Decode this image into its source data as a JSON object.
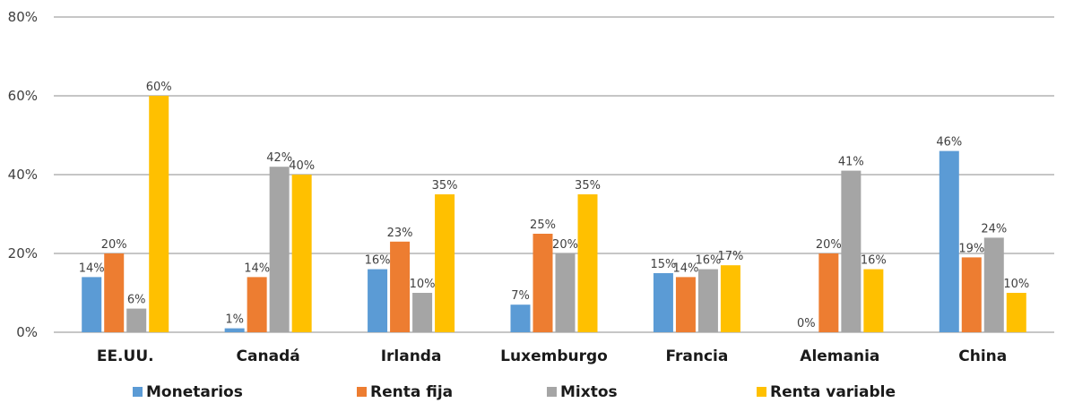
{
  "chart_data": {
    "type": "bar",
    "title": "",
    "xlabel": "",
    "ylabel": "",
    "ylim": [
      0,
      80
    ],
    "yticks": [
      0,
      20,
      40,
      60,
      80
    ],
    "ytick_labels": [
      "0%",
      "20%",
      "40%",
      "60%",
      "80%"
    ],
    "grid": true,
    "legend_position": "bottom",
    "categories": [
      "EE.UU.",
      "Canadá",
      "Irlanda",
      "Luxemburgo",
      "Francia",
      "Alemania",
      "China"
    ],
    "series": [
      {
        "name": "Monetarios",
        "color": "#5B9BD5",
        "values": [
          14,
          1,
          16,
          7,
          15,
          0,
          46
        ],
        "labels": [
          "14%",
          "1%",
          "16%",
          "7%",
          "15%",
          "0%",
          "46%"
        ]
      },
      {
        "name": "Renta fija",
        "color": "#ED7D31",
        "values": [
          20,
          14,
          23,
          25,
          14,
          20,
          19
        ],
        "labels": [
          "20%",
          "14%",
          "23%",
          "25%",
          "14%",
          "20%",
          "19%"
        ]
      },
      {
        "name": "Mixtos",
        "color": "#A5A5A5",
        "values": [
          6,
          42,
          10,
          20,
          16,
          41,
          24
        ],
        "labels": [
          "6%",
          "42%",
          "10%",
          "20%",
          "16%",
          "41%",
          "24%"
        ]
      },
      {
        "name": "Renta variable",
        "color": "#FFC000",
        "values": [
          60,
          40,
          35,
          35,
          17,
          16,
          10
        ],
        "labels": [
          "60%",
          "40%",
          "35%",
          "35%",
          "17%",
          "16%",
          "10%"
        ]
      }
    ]
  }
}
